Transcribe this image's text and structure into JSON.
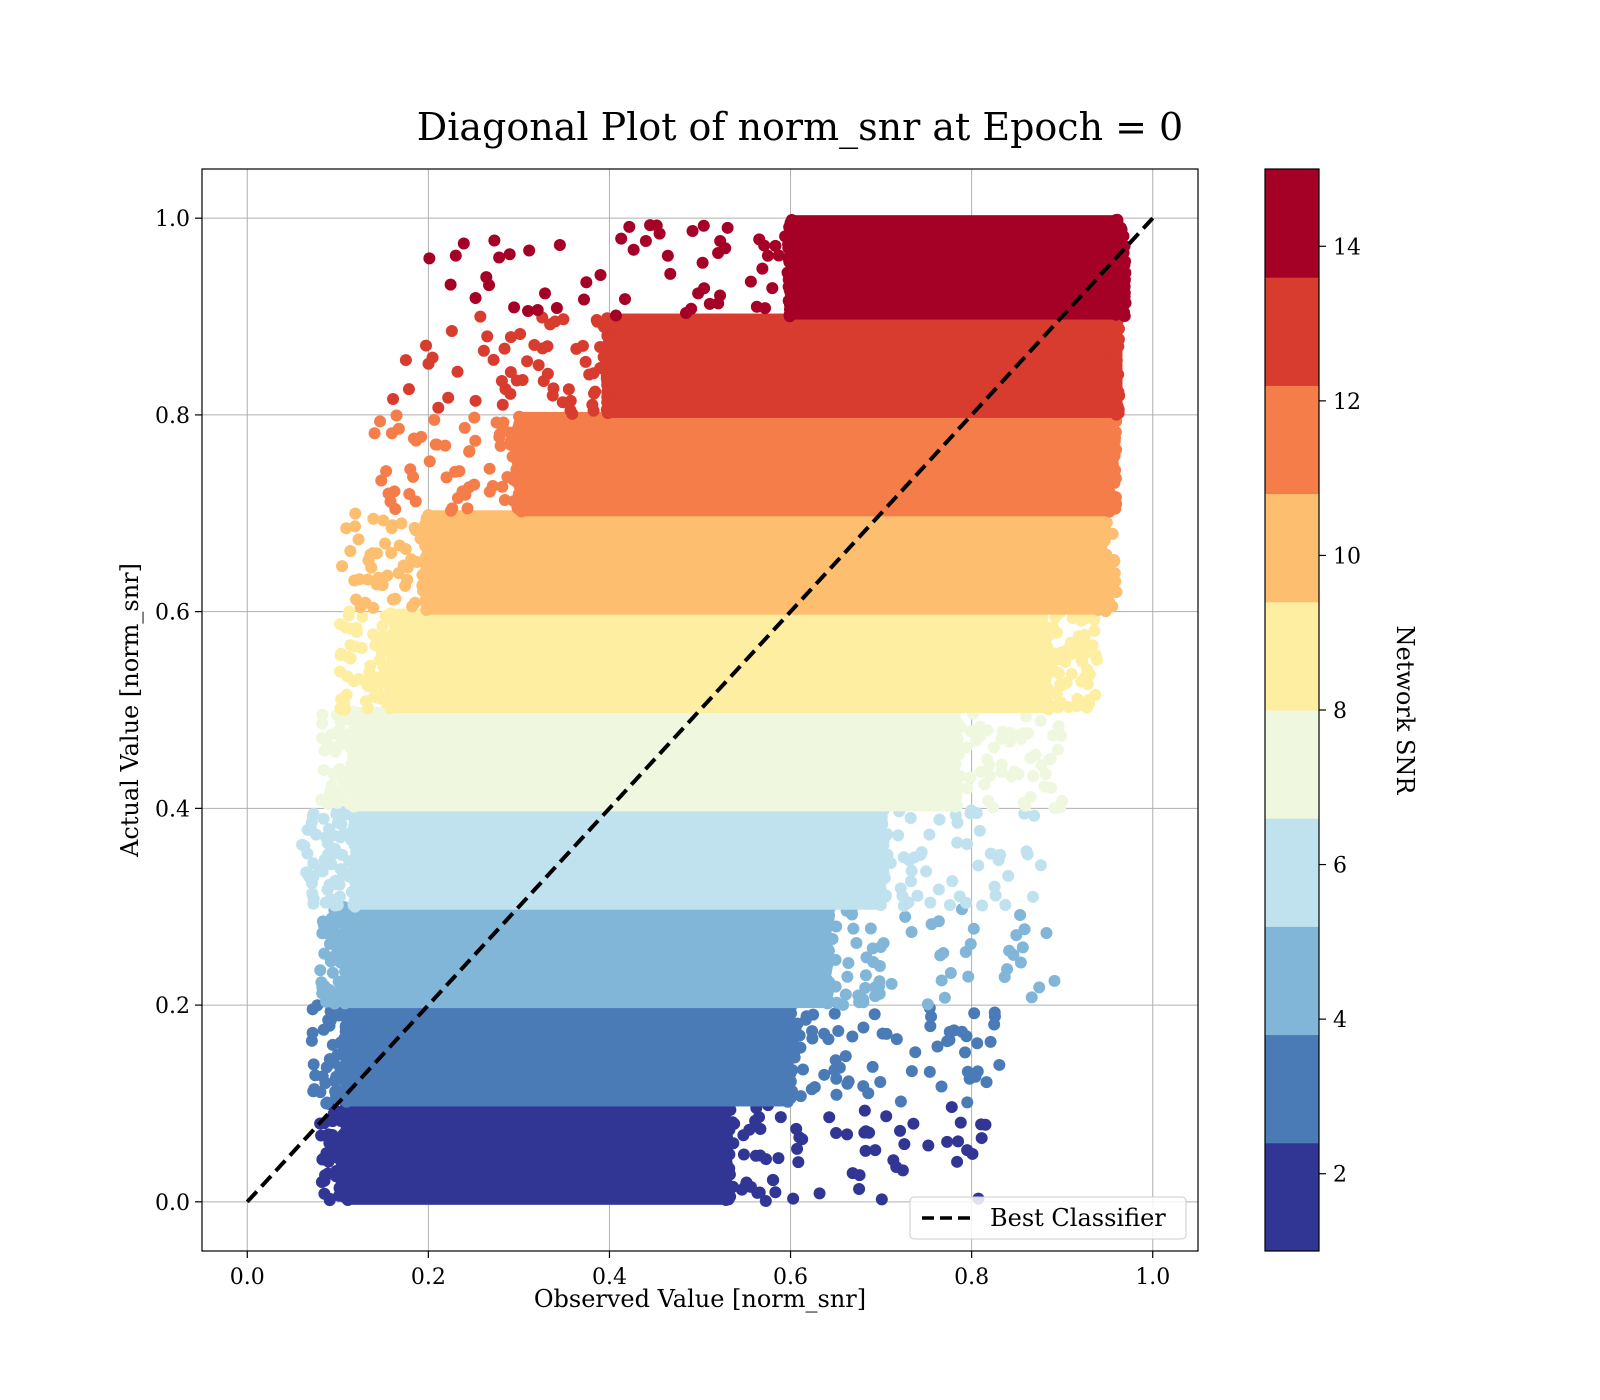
{
  "chart_data": {
    "type": "scatter",
    "title": "Diagonal Plot of norm_snr at Epoch = 0",
    "xlabel": "Observed Value [norm_snr]",
    "ylabel": "Actual Value [norm_snr]",
    "xlim": [
      -0.05,
      1.05
    ],
    "ylim": [
      -0.05,
      1.05
    ],
    "xticks": [
      "0.0",
      "0.2",
      "0.4",
      "0.6",
      "0.8",
      "1.0"
    ],
    "yticks": [
      "0.0",
      "0.2",
      "0.4",
      "0.6",
      "0.8",
      "1.0"
    ],
    "grid": true,
    "legend": {
      "position": "lower-right",
      "entries": [
        "Best Classifier"
      ]
    },
    "reference_line": {
      "name": "Best Classifier",
      "x": [
        0,
        1
      ],
      "y": [
        0,
        1
      ],
      "style": "dashed",
      "color": "#000000"
    },
    "colorbar": {
      "label": "Network SNR",
      "range": [
        1,
        15
      ],
      "ticks": [
        "2",
        "4",
        "6",
        "8",
        "10",
        "12",
        "14"
      ],
      "colors": [
        "#313695",
        "#4a7bb7",
        "#82b6d8",
        "#bfe2ee",
        "#eff8df",
        "#feeea2",
        "#fdbe70",
        "#f57d4a",
        "#d73c2e",
        "#a50026"
      ]
    },
    "bands": [
      {
        "y": [
          0.0,
          0.1
        ],
        "core_x": [
          0.11,
          0.53
        ],
        "scatter_x": [
          0.08,
          0.82
        ],
        "snr": "1.0-2.4",
        "color": "#313695"
      },
      {
        "y": [
          0.1,
          0.2
        ],
        "core_x": [
          0.11,
          0.6
        ],
        "scatter_x": [
          0.07,
          0.84
        ],
        "snr": "2.4-3.8",
        "color": "#4a7bb7"
      },
      {
        "y": [
          0.2,
          0.3
        ],
        "core_x": [
          0.11,
          0.64
        ],
        "scatter_x": [
          0.08,
          0.9
        ],
        "snr": "3.8-5.2",
        "color": "#82b6d8"
      },
      {
        "y": [
          0.3,
          0.4
        ],
        "core_x": [
          0.12,
          0.7
        ],
        "scatter_x": [
          0.06,
          0.88
        ],
        "snr": "5.2-6.6",
        "color": "#bfe2ee"
      },
      {
        "y": [
          0.4,
          0.5
        ],
        "core_x": [
          0.12,
          0.78
        ],
        "scatter_x": [
          0.08,
          0.9
        ],
        "snr": "6.6-8.0",
        "color": "#eff8df"
      },
      {
        "y": [
          0.5,
          0.6
        ],
        "core_x": [
          0.16,
          0.88
        ],
        "scatter_x": [
          0.1,
          0.94
        ],
        "snr": "8.0-9.4",
        "color": "#feeea2"
      },
      {
        "y": [
          0.6,
          0.7
        ],
        "core_x": [
          0.2,
          0.94
        ],
        "scatter_x": [
          0.1,
          0.96
        ],
        "snr": "9.4-10.8",
        "color": "#fdbe70"
      },
      {
        "y": [
          0.7,
          0.8
        ],
        "core_x": [
          0.3,
          0.95
        ],
        "scatter_x": [
          0.14,
          0.96
        ],
        "snr": "10.8-12.2",
        "color": "#f57d4a"
      },
      {
        "y": [
          0.8,
          0.9
        ],
        "core_x": [
          0.4,
          0.96
        ],
        "scatter_x": [
          0.15,
          0.96
        ],
        "snr": "12.2-13.6",
        "color": "#d73c2e"
      },
      {
        "y": [
          0.9,
          1.0
        ],
        "core_x": [
          0.6,
          0.96
        ],
        "scatter_x": [
          0.17,
          0.97
        ],
        "snr": "13.6-15.0",
        "color": "#a50026"
      }
    ]
  }
}
